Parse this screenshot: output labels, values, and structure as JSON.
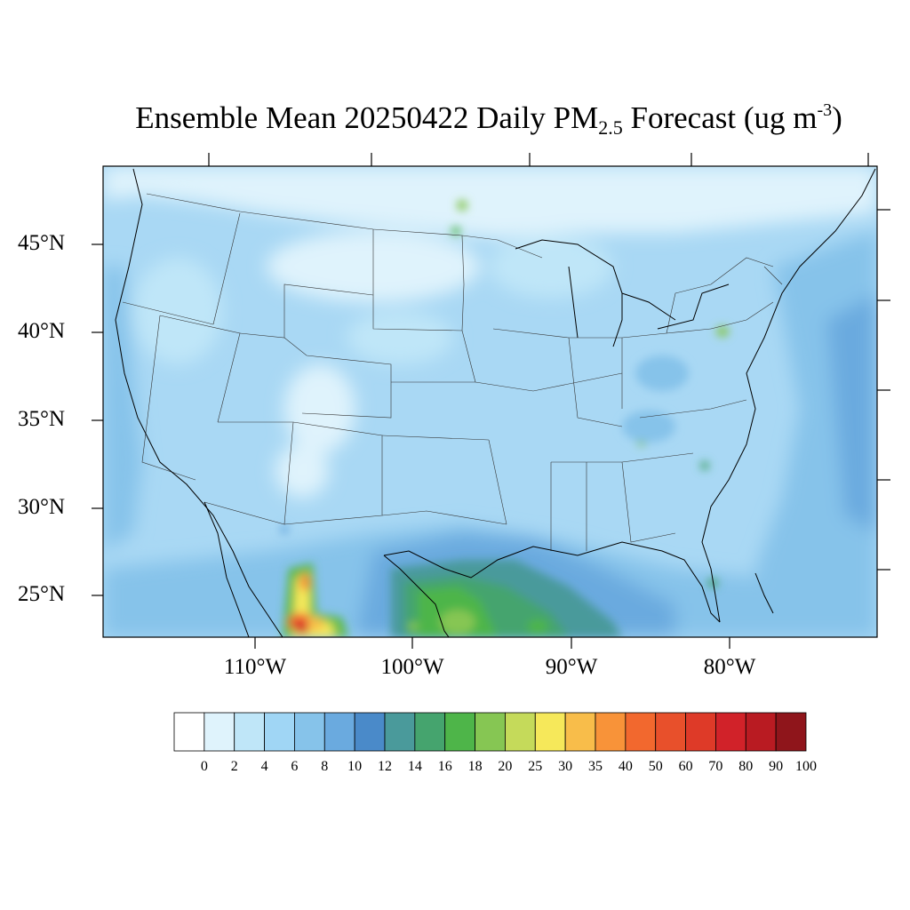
{
  "title": {
    "main": "Ensemble Mean 20250422 Daily PM",
    "subscript": "2.5",
    "rest": " Forecast (ug m",
    "superscript": "-3",
    "close": ")"
  },
  "map": {
    "lat_labels": [
      "45°N",
      "40°N",
      "35°N",
      "30°N",
      "25°N"
    ],
    "lon_labels": [
      "110°W",
      "100°W",
      "90°W",
      "80°W"
    ],
    "background_color": "#a9d8f4"
  },
  "colorbar": {
    "labels": [
      "0",
      "2",
      "4",
      "6",
      "8",
      "10",
      "12",
      "14",
      "16",
      "18",
      "20",
      "25",
      "30",
      "35",
      "40",
      "50",
      "60",
      "70",
      "80",
      "90",
      "100"
    ],
    "colors": [
      "#ffffff",
      "#dff3fc",
      "#bfe6f8",
      "#a0d6f5",
      "#86c3ea",
      "#6aaadf",
      "#4a8ac9",
      "#4a9a9b",
      "#45a46e",
      "#4eb549",
      "#86c653",
      "#c5da5a",
      "#f6e85a",
      "#f8bd4a",
      "#f89339",
      "#f2682e",
      "#e8502b",
      "#de3a28",
      "#d12229",
      "#b91b22",
      "#8f151b"
    ]
  }
}
